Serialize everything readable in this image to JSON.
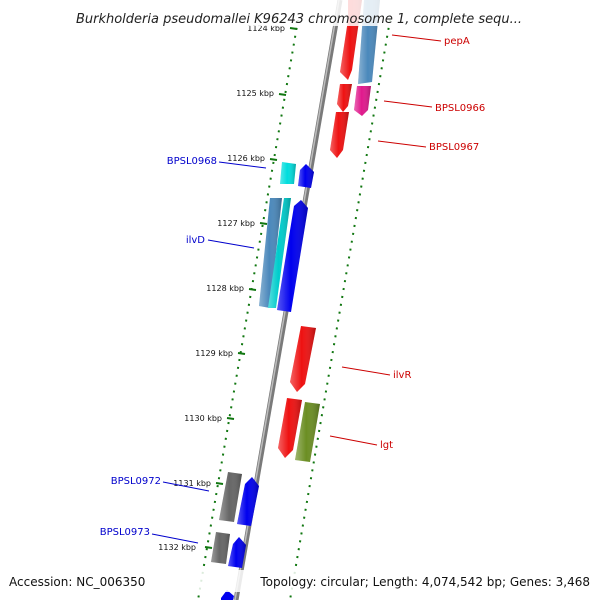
{
  "title": "Burkholderia pseudomallei K96243 chromosome 1, complete sequ...",
  "footer": {
    "accession": "Accession: NC_006350",
    "info": "Topology: circular; Length: 4,074,542 bp; Genes: 3,468"
  },
  "colors": {
    "forward_strand_label": "#0000cc",
    "reverse_strand_label": "#cc0000",
    "backbone": "#888888",
    "tick": "#117711"
  },
  "ticks": [
    {
      "label": "1124 kbp",
      "pos": 1124
    },
    {
      "label": "1125 kbp",
      "pos": 1125
    },
    {
      "label": "1126 kbp",
      "pos": 1126
    },
    {
      "label": "1127 kbp",
      "pos": 1127
    },
    {
      "label": "1128 kbp",
      "pos": 1128
    },
    {
      "label": "1129 kbp",
      "pos": 1129
    },
    {
      "label": "1130 kbp",
      "pos": 1130
    },
    {
      "label": "1131 kbp",
      "pos": 1131
    },
    {
      "label": "1132 kbp",
      "pos": 1132
    }
  ],
  "genes": [
    {
      "name": "pepA",
      "strand": "reverse",
      "color": "#ee1111"
    },
    {
      "name": "pepA-partner",
      "strand": "reverse",
      "color": "#4a88bb"
    },
    {
      "name": "BPSL0966",
      "strand": "reverse",
      "color": "#ee1111"
    },
    {
      "name": "BPSL0966-b",
      "strand": "reverse",
      "color": "#e0188c"
    },
    {
      "name": "BPSL0967",
      "strand": "reverse",
      "color": "#ee1111"
    },
    {
      "name": "BPSL0968",
      "strand": "forward",
      "color": "#00dddd"
    },
    {
      "name": "BPSL0968-b",
      "strand": "forward",
      "color": "#0000ee"
    },
    {
      "name": "ilvD",
      "strand": "forward",
      "color": "#4a88bb"
    },
    {
      "name": "ilvD-b",
      "strand": "forward",
      "color": "#00cccc"
    },
    {
      "name": "ilvD-c",
      "strand": "forward",
      "color": "#0000ee"
    },
    {
      "name": "ilvR",
      "strand": "reverse",
      "color": "#ee1111"
    },
    {
      "name": "lgt",
      "strand": "reverse",
      "color": "#ee1111"
    },
    {
      "name": "lgt-b",
      "strand": "reverse",
      "color": "#6b8e23"
    },
    {
      "name": "BPSL0972",
      "strand": "forward",
      "color": "#666666"
    },
    {
      "name": "BPSL0972-b",
      "strand": "forward",
      "color": "#0000ee"
    },
    {
      "name": "BPSL0973",
      "strand": "forward",
      "color": "#666666"
    },
    {
      "name": "BPSL0973-b",
      "strand": "forward",
      "color": "#0000ee"
    },
    {
      "name": "bottom-gene",
      "strand": "forward",
      "color": "#0000ee"
    }
  ],
  "labels": [
    {
      "text": "pepA",
      "strand": "reverse"
    },
    {
      "text": "BPSL0966",
      "strand": "reverse"
    },
    {
      "text": "BPSL0967",
      "strand": "reverse"
    },
    {
      "text": "BPSL0968",
      "strand": "forward"
    },
    {
      "text": "ilvD",
      "strand": "forward"
    },
    {
      "text": "ilvR",
      "strand": "reverse"
    },
    {
      "text": "lgt",
      "strand": "reverse"
    },
    {
      "text": "BPSL0972",
      "strand": "forward"
    },
    {
      "text": "BPSL0973",
      "strand": "forward"
    }
  ]
}
